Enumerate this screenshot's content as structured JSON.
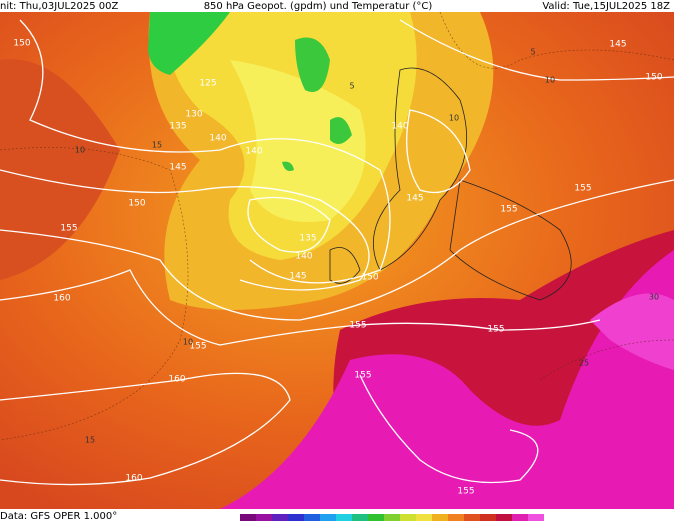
{
  "header": {
    "init": "nit: Thu,03JUL2025 00Z",
    "title": "850 hPa Geopot. (gpdm) und Temperatur (°C)",
    "valid": "Valid: Tue,15JUL2025 18Z"
  },
  "footer": {
    "source": "Data: GFS OPER 1.000°"
  },
  "geopotential_labels": [
    150,
    125,
    130,
    135,
    140,
    140,
    145,
    150,
    155,
    160,
    135,
    140,
    145,
    150,
    155,
    155,
    160,
    155,
    160,
    155,
    155,
    155,
    155,
    150,
    145,
    140,
    145
  ],
  "temperature_labels": [
    10,
    15,
    10,
    15,
    5,
    10,
    10,
    25,
    30,
    5
  ]
}
